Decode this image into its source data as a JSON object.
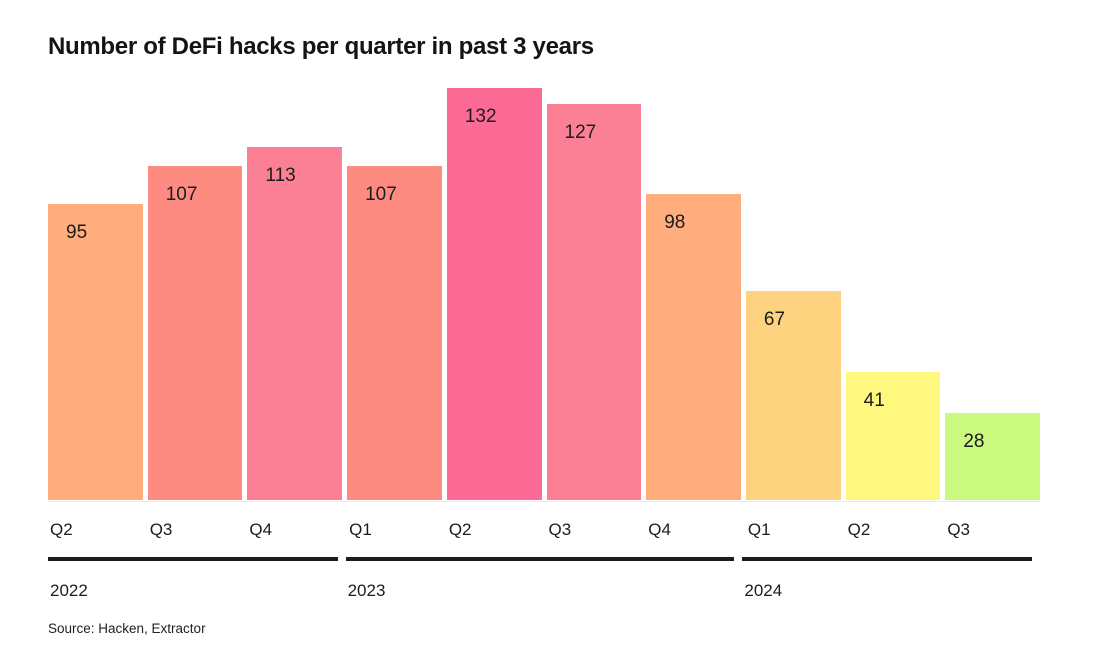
{
  "title": "Number of DeFi hacks per quarter in past 3 years",
  "source": "Source: Hacken, Extractor",
  "chart_data": {
    "type": "bar",
    "title": "Number of DeFi hacks per quarter in past 3 years",
    "categories": [
      "Q2",
      "Q3",
      "Q4",
      "Q1",
      "Q2",
      "Q3",
      "Q4",
      "Q1",
      "Q2",
      "Q3"
    ],
    "values": [
      95,
      107,
      113,
      107,
      132,
      127,
      98,
      67,
      41,
      28
    ],
    "bar_colors": [
      "#FFAD7C",
      "#FE8B82",
      "#FC8095",
      "#FE8B82",
      "#FB6B95",
      "#FC8095",
      "#FFAD7C",
      "#FED37F",
      "#FEF87F",
      "#CBF97F"
    ],
    "year_groups": [
      {
        "label": "2022",
        "start": 0,
        "count": 3
      },
      {
        "label": "2023",
        "start": 3,
        "count": 4
      },
      {
        "label": "2024",
        "start": 7,
        "count": 3
      }
    ],
    "ylim": [
      0,
      132
    ],
    "xlabel": "",
    "ylabel": "",
    "grid": false,
    "legend": "none",
    "value_labels_shown": true,
    "axis_color": "#1c1c1c",
    "source": "Source: Hacken, Extractor"
  }
}
